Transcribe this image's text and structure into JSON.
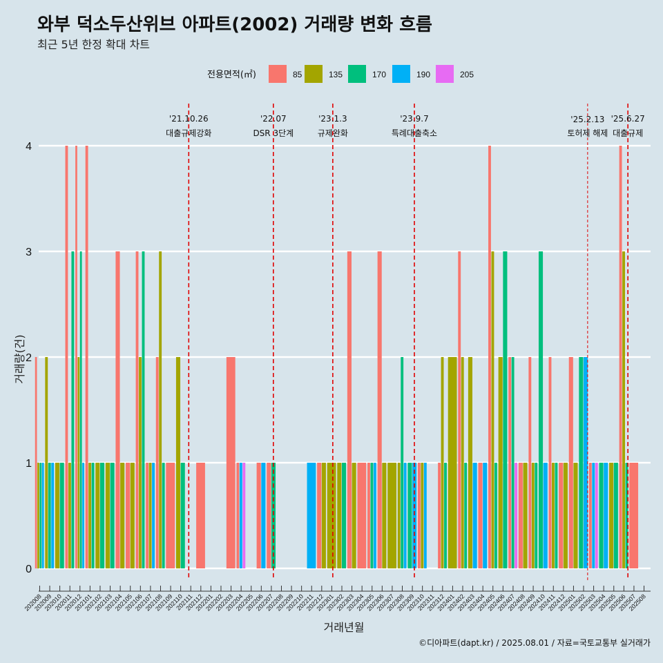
{
  "title": "와부 덕소두산위브 아파트(2002) 거래량 변화 흐름",
  "subtitle": "최근 5년 한정 확대 차트",
  "caption": "©디아파트(dapt.kr) / 2025.08.01 / 자료=국토교통부 실거래가",
  "chart_data": {
    "type": "bar",
    "xlabel": "거래년월",
    "ylabel": "거래량(건)",
    "ylim": [
      -0.18,
      4.2
    ],
    "yticks": [
      0,
      1,
      2,
      3,
      4
    ],
    "grid": true,
    "legend_position": "top",
    "legend_title": "전용면적(㎡)",
    "series": [
      {
        "name": "85",
        "color": "#f8766d"
      },
      {
        "name": "135",
        "color": "#a3a500"
      },
      {
        "name": "170",
        "color": "#00bf7d"
      },
      {
        "name": "190",
        "color": "#00b0f6"
      },
      {
        "name": "205",
        "color": "#e76bf3"
      }
    ],
    "categories": [
      "202008",
      "202009",
      "202010",
      "202011",
      "202012",
      "202101",
      "202102",
      "202103",
      "202104",
      "202105",
      "202106",
      "202107",
      "202108",
      "202109",
      "202110",
      "202111",
      "202112",
      "202201",
      "202202",
      "202203",
      "202204",
      "202205",
      "202206",
      "202207",
      "202208",
      "202209",
      "202210",
      "202211",
      "202212",
      "202301",
      "202302",
      "202303",
      "202304",
      "202305",
      "202306",
      "202307",
      "202308",
      "202309",
      "202310",
      "202311",
      "202312",
      "202401",
      "202402",
      "202403",
      "202404",
      "202405",
      "202406",
      "202407",
      "202408",
      "202409",
      "202410",
      "202411",
      "202412",
      "202501",
      "202502",
      "202503",
      "202504",
      "202505",
      "202506",
      "202507",
      "202508"
    ],
    "bars": [
      {
        "category": "202008",
        "values": {
          "85": 2,
          "135": 1,
          "170": 1,
          "190": 1
        }
      },
      {
        "category": "202009",
        "values": {
          "135": 2,
          "170": 1,
          "190": 1
        }
      },
      {
        "category": "202010",
        "values": {
          "135": 1,
          "170": 1
        }
      },
      {
        "category": "202011",
        "values": {
          "85": 4,
          "135": 1,
          "170": 3
        }
      },
      {
        "category": "202012",
        "values": {
          "85": 4,
          "135": 2,
          "170": 3,
          "190": 1
        }
      },
      {
        "category": "202101",
        "values": {
          "85": 4,
          "135": 1,
          "170": 1
        }
      },
      {
        "category": "202102",
        "values": {
          "135": 1,
          "170": 1
        }
      },
      {
        "category": "202103",
        "values": {
          "135": 1,
          "170": 1
        }
      },
      {
        "category": "202104",
        "values": {
          "85": 3,
          "135": 1
        }
      },
      {
        "category": "202105",
        "values": {
          "85": 1,
          "135": 1
        }
      },
      {
        "category": "202106",
        "values": {
          "85": 3,
          "135": 2,
          "170": 3
        }
      },
      {
        "category": "202107",
        "values": {
          "85": 1,
          "135": 1,
          "190": 1
        }
      },
      {
        "category": "202108",
        "values": {
          "85": 2,
          "135": 3,
          "170": 1
        }
      },
      {
        "category": "202109",
        "values": {
          "85": 1
        }
      },
      {
        "category": "202110",
        "values": {
          "135": 2,
          "170": 1
        }
      },
      {
        "category": "202111",
        "values": {}
      },
      {
        "category": "202112",
        "values": {
          "85": 1
        }
      },
      {
        "category": "202201",
        "values": {}
      },
      {
        "category": "202202",
        "values": {}
      },
      {
        "category": "202203",
        "values": {
          "85": 2
        }
      },
      {
        "category": "202204",
        "values": {
          "85": 1,
          "190": 1,
          "205": 1
        }
      },
      {
        "category": "202205",
        "values": {}
      },
      {
        "category": "202206",
        "values": {
          "85": 1,
          "190": 1
        }
      },
      {
        "category": "202207",
        "values": {
          "85": 1,
          "170": 1
        }
      },
      {
        "category": "202208",
        "values": {}
      },
      {
        "category": "202209",
        "values": {}
      },
      {
        "category": "202210",
        "values": {}
      },
      {
        "category": "202211",
        "values": {
          "190": 1
        }
      },
      {
        "category": "202212",
        "values": {
          "85": 1,
          "135": 1
        }
      },
      {
        "category": "202301",
        "values": {
          "135": 1
        }
      },
      {
        "category": "202302",
        "values": {
          "135": 1,
          "170": 1
        }
      },
      {
        "category": "202303",
        "values": {
          "85": 3,
          "135": 1
        }
      },
      {
        "category": "202304",
        "values": {
          "85": 1
        }
      },
      {
        "category": "202305",
        "values": {
          "85": 1,
          "170": 1,
          "190": 1
        }
      },
      {
        "category": "202306",
        "values": {
          "85": 3,
          "135": 1
        }
      },
      {
        "category": "202307",
        "values": {
          "135": 1
        }
      },
      {
        "category": "202308",
        "values": {
          "135": 1,
          "170": 2,
          "190": 1
        }
      },
      {
        "category": "202309",
        "values": {
          "170": 1,
          "190": 1
        }
      },
      {
        "category": "202310",
        "values": {
          "85": 1,
          "135": 1,
          "190": 1
        }
      },
      {
        "category": "202311",
        "values": {}
      },
      {
        "category": "202312",
        "values": {
          "85": 1,
          "135": 2,
          "170": 1
        }
      },
      {
        "category": "202401",
        "values": {
          "135": 2
        }
      },
      {
        "category": "202402",
        "values": {
          "85": 3,
          "135": 2,
          "170": 1
        }
      },
      {
        "category": "202403",
        "values": {
          "135": 2,
          "190": 1
        }
      },
      {
        "category": "202404",
        "values": {
          "85": 1,
          "190": 1
        }
      },
      {
        "category": "202405",
        "values": {
          "85": 4,
          "135": 3,
          "170": 1
        }
      },
      {
        "category": "202406",
        "values": {
          "135": 2,
          "170": 3
        }
      },
      {
        "category": "202407",
        "values": {
          "85": 2,
          "170": 2,
          "205": 1
        }
      },
      {
        "category": "202408",
        "values": {
          "85": 1,
          "135": 1
        }
      },
      {
        "category": "202409",
        "values": {
          "85": 2,
          "135": 1,
          "170": 1
        }
      },
      {
        "category": "202410",
        "values": {
          "170": 3,
          "190": 1
        }
      },
      {
        "category": "202411",
        "values": {
          "85": 2,
          "135": 1,
          "170": 1
        }
      },
      {
        "category": "202412",
        "values": {
          "85": 1,
          "135": 1
        }
      },
      {
        "category": "202501",
        "values": {
          "85": 2,
          "135": 1
        }
      },
      {
        "category": "202502",
        "values": {
          "170": 2,
          "190": 2
        }
      },
      {
        "category": "202503",
        "values": {
          "85": 1,
          "190": 1,
          "205": 1
        }
      },
      {
        "category": "202504",
        "values": {
          "170": 1,
          "190": 1
        }
      },
      {
        "category": "202505",
        "values": {
          "135": 1,
          "170": 1
        }
      },
      {
        "category": "202506",
        "values": {
          "85": 4,
          "135": 3,
          "170": 1
        }
      },
      {
        "category": "202507",
        "values": {
          "85": 1
        }
      },
      {
        "category": "202508",
        "values": {}
      }
    ],
    "annotations": [
      {
        "date": "'21.10.26",
        "label": "대출규제강화",
        "x_index": 14.8,
        "major": true
      },
      {
        "date": "'22.07",
        "label": "DSR 3단계",
        "x_index": 23.2,
        "major": true
      },
      {
        "date": "'23.1.3",
        "label": "규제완화",
        "x_index": 29.1,
        "major": true
      },
      {
        "date": "'23.9.7",
        "label": "특례대출축소",
        "x_index": 37.2,
        "major": true
      },
      {
        "date": "'25.2.13",
        "label": "토허제 해제",
        "x_index": 54.4,
        "major": false
      },
      {
        "date": "'25.6.27",
        "label": "대출규제",
        "x_index": 58.4,
        "major": true
      }
    ]
  }
}
